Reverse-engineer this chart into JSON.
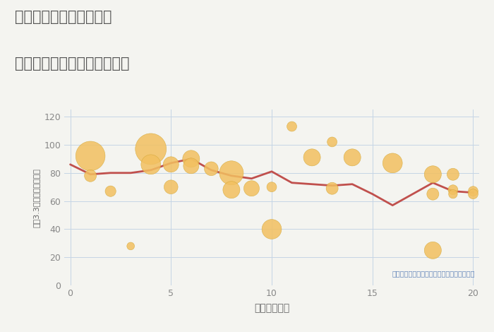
{
  "title_line1": "三重県津市一志町其村の",
  "title_line2": "駅距離別中古マンション価格",
  "xlabel": "駅距離（分）",
  "ylabel_parts": [
    "坪（3.3㎡）単価（万円）"
  ],
  "background_color": "#f4f4f0",
  "plot_bg_color": "#f4f4f0",
  "grid_color": "#c5d5e5",
  "line_color": "#c0504d",
  "bubble_color": "#f2c060",
  "bubble_edge_color": "#d4a838",
  "annotation_color": "#6688bb",
  "annotation_text": "円の大きさは、取引のあった物件面積を示す",
  "xlim": [
    -0.3,
    20.3
  ],
  "ylim": [
    0,
    125
  ],
  "yticks": [
    0,
    20,
    40,
    60,
    80,
    100,
    120
  ],
  "xticks": [
    0,
    5,
    10,
    15,
    20
  ],
  "scatter_x": [
    1,
    1,
    2,
    3,
    4,
    4,
    5,
    5,
    6,
    6,
    7,
    8,
    8,
    9,
    10,
    10,
    11,
    12,
    13,
    13,
    14,
    16,
    18,
    18,
    18,
    19,
    19,
    19,
    20,
    20
  ],
  "scatter_y": [
    92,
    78,
    67,
    28,
    97,
    86,
    86,
    70,
    90,
    85,
    83,
    80,
    68,
    69,
    40,
    70,
    113,
    91,
    102,
    69,
    91,
    87,
    79,
    65,
    25,
    79,
    68,
    65,
    67,
    65
  ],
  "scatter_size": [
    900,
    150,
    120,
    60,
    1000,
    400,
    250,
    200,
    300,
    250,
    200,
    600,
    300,
    250,
    400,
    100,
    100,
    300,
    100,
    150,
    300,
    400,
    300,
    150,
    300,
    150,
    100,
    80,
    100,
    100
  ],
  "line_x": [
    0,
    1,
    2,
    3,
    4,
    5,
    6,
    7,
    8,
    9,
    10,
    11,
    12,
    13,
    14,
    15,
    16,
    17,
    18,
    19,
    20
  ],
  "line_y": [
    86,
    79,
    80,
    80,
    82,
    87,
    90,
    82,
    78,
    76,
    81,
    73,
    72,
    71,
    72,
    65,
    57,
    65,
    73,
    67,
    66
  ]
}
